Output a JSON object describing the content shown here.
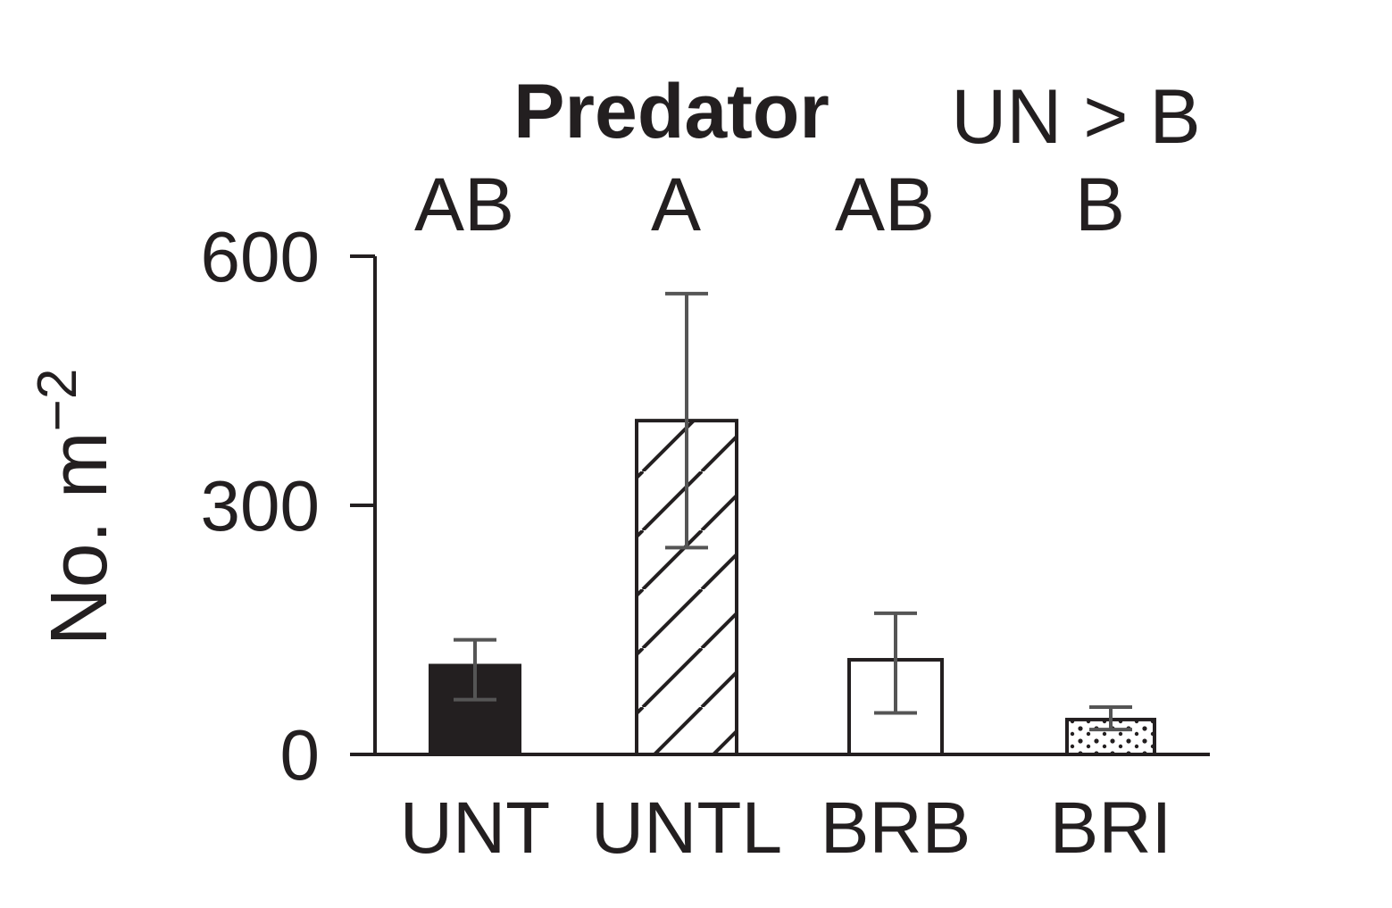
{
  "chart_data": {
    "type": "bar",
    "title": "Predator",
    "annotation": "UN > B",
    "ylabel": "No. m",
    "ylabel_superscript": "−2",
    "xlabel": "",
    "ylim": [
      0,
      600
    ],
    "yticks": [
      "0",
      "300",
      "600"
    ],
    "ytick_values": [
      0,
      300,
      600
    ],
    "categories": [
      "UNT",
      "UNTL",
      "BRB",
      "BRI"
    ],
    "values": [
      107,
      402,
      114,
      42
    ],
    "error_upper": [
      138,
      555,
      170,
      57
    ],
    "error_lower": [
      66,
      249,
      50,
      30
    ],
    "group_letters": [
      "AB",
      "A",
      "AB",
      "B"
    ],
    "fills": [
      "solid",
      "hatched",
      "empty",
      "stippled"
    ],
    "grid": false,
    "legend": "none"
  },
  "colors": {
    "ink": "#231f20",
    "background": "#ffffff"
  }
}
